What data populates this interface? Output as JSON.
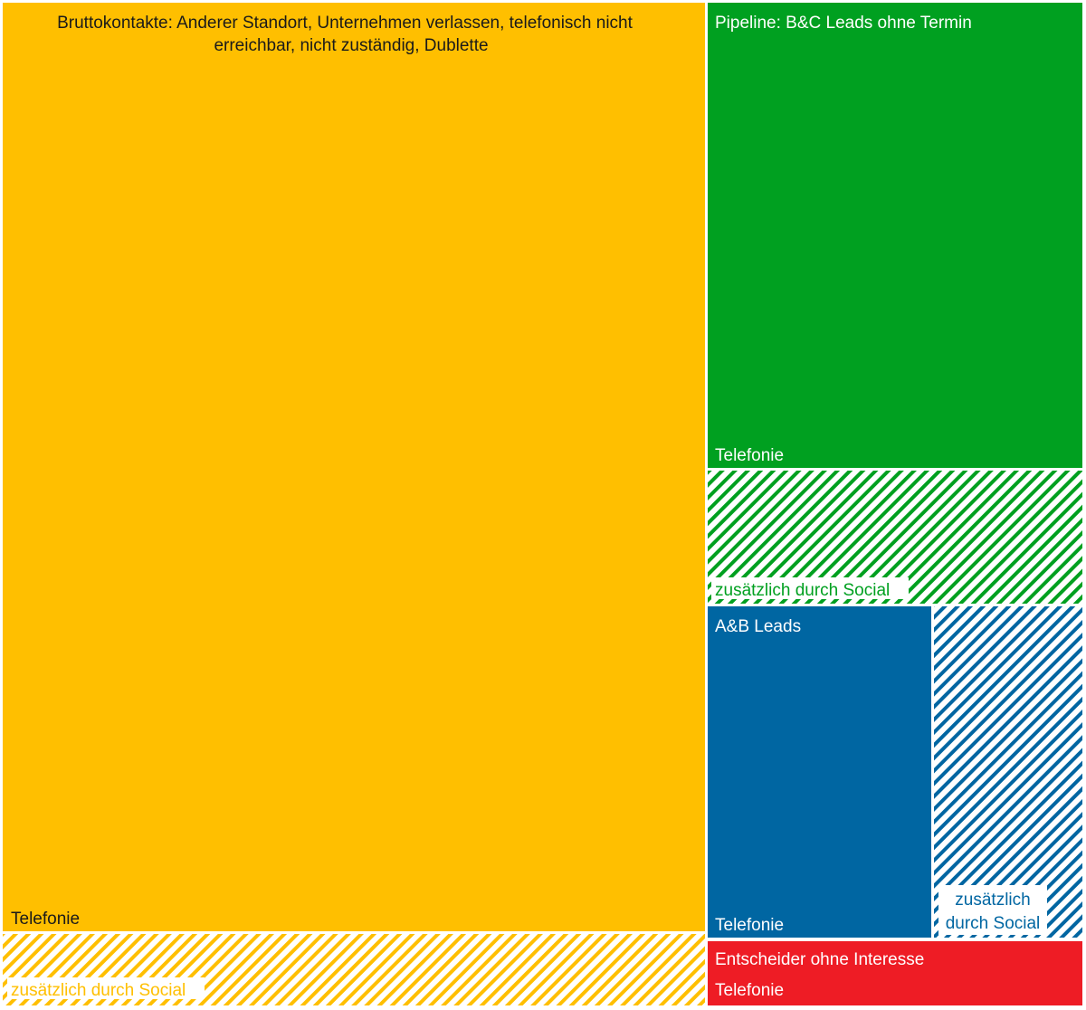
{
  "chart_data": {
    "type": "treemap",
    "groups": [
      {
        "name": "Bruttokontakte: Anderer Standort, Unternehmen verlassen, telefonisch nicht erreichbar, nicht zuständig, Dublette",
        "color": "#FFBF00",
        "text_color": "#1a1a1a",
        "parts": [
          {
            "label": "Telefonie",
            "value": 80.0,
            "hatched": false
          },
          {
            "label": "zusätzlich durch Social",
            "value": 6.0,
            "hatched": true
          }
        ]
      },
      {
        "name": "Pipeline: B&C Leads ohne Termin",
        "color": "#00A020",
        "text_color": "#ffffff",
        "parts": [
          {
            "label": "Telefonie",
            "value": 17.0,
            "hatched": false
          },
          {
            "label": "zusätzlich durch Social",
            "value": 5.0,
            "hatched": true
          }
        ]
      },
      {
        "name": "A&B Leads",
        "color": "#0066A2",
        "text_color": "#ffffff",
        "parts": [
          {
            "label": "Telefonie",
            "value": 9.0,
            "hatched": false
          },
          {
            "label": "zusätzlich durch Social",
            "value": 6.0,
            "hatched": true
          }
        ]
      },
      {
        "name": "Entscheider ohne Interesse",
        "color": "#EE1C25",
        "text_color": "#ffffff",
        "parts": [
          {
            "label": "Telefonie",
            "value": 3.0,
            "hatched": false
          }
        ]
      }
    ]
  }
}
